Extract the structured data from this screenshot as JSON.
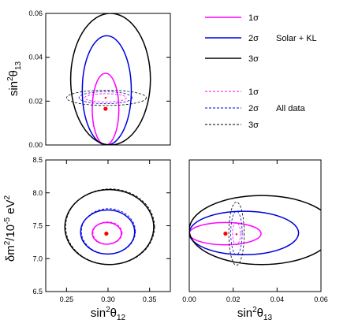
{
  "colors": {
    "one_sigma": "#ff00ff",
    "two_sigma": "#0000dd",
    "three_sigma": "#000000",
    "best_fit": "#ff0000"
  },
  "labels": {
    "top_ylabel": {
      "base": "sin",
      "sup": "2",
      "theta": "θ",
      "sub": "13"
    },
    "left_ylabel": {
      "pre": "δm",
      "sup1": "2",
      "mid": "/10",
      "sup2": "-5",
      "unit": " eV",
      "sup3": "2"
    },
    "bottom_left_xlabel": {
      "base": "sin",
      "sup": "2",
      "theta": "θ",
      "sub": "12"
    },
    "bottom_right_xlabel": {
      "base": "sin",
      "sup": "2",
      "theta": "θ",
      "sub": "13"
    }
  },
  "legend": {
    "solar_kl_group": "Solar + KL",
    "all_data_group": "All data",
    "entries": [
      "1σ",
      "2σ",
      "3σ"
    ]
  },
  "chart_data": [
    {
      "type": "scatter",
      "panel": "top-left",
      "xlim": [
        0.225,
        0.375
      ],
      "ylim": [
        0.0,
        0.06
      ],
      "x_ticks": [],
      "y_ticks": [
        {
          "v": 0.0,
          "label": "0.00"
        },
        {
          "v": 0.02,
          "label": "0.02"
        },
        {
          "v": 0.04,
          "label": "0.04"
        },
        {
          "v": 0.06,
          "label": "0.06"
        }
      ],
      "best_fit": {
        "x": 0.297,
        "y": 0.0165
      },
      "all_data_best_fit": {
        "x": 0.297,
        "y": 0.0215
      },
      "solar_kl_contours": [
        {
          "level": "1σ",
          "x_range": [
            0.281,
            0.313
          ],
          "y_range": [
            0.0,
            0.0327
          ]
        },
        {
          "level": "2σ",
          "x_range": [
            0.269,
            0.328
          ],
          "y_range": [
            0.0,
            0.0498
          ]
        },
        {
          "level": "3σ",
          "x_range": [
            0.255,
            0.351
          ],
          "y_range": [
            0.0,
            0.06
          ]
        }
      ],
      "all_data_contours": [
        {
          "level": "1σ",
          "x_range": [
            0.272,
            0.322
          ],
          "y_range": [
            0.0196,
            0.0234
          ]
        },
        {
          "level": "2σ",
          "x_range": [
            0.265,
            0.329
          ],
          "y_range": [
            0.0188,
            0.0243
          ]
        },
        {
          "level": "3σ",
          "x_range": [
            0.25,
            0.346
          ],
          "y_range": [
            0.018,
            0.025
          ]
        }
      ]
    },
    {
      "type": "scatter",
      "panel": "bottom-left",
      "xlim": [
        0.225,
        0.375
      ],
      "ylim": [
        6.5,
        8.5
      ],
      "x_ticks": [
        {
          "v": 0.25,
          "label": "0.25"
        },
        {
          "v": 0.3,
          "label": "0.30"
        },
        {
          "v": 0.35,
          "label": "0.35"
        }
      ],
      "y_ticks": [
        {
          "v": 6.5,
          "label": "6.5"
        },
        {
          "v": 7.0,
          "label": "7.0"
        },
        {
          "v": 7.5,
          "label": "7.5"
        },
        {
          "v": 8.0,
          "label": "8.0"
        },
        {
          "v": 8.5,
          "label": "8.5"
        }
      ],
      "best_fit": {
        "x": 0.298,
        "y": 7.38
      },
      "solar_kl_contours": [
        {
          "level": "1σ",
          "x_range": [
            0.281,
            0.316
          ],
          "y_range": [
            7.22,
            7.55
          ]
        },
        {
          "level": "2σ",
          "x_range": [
            0.267,
            0.332
          ],
          "y_range": [
            7.07,
            7.74
          ]
        },
        {
          "level": "3σ",
          "x_range": [
            0.248,
            0.355
          ],
          "y_range": [
            6.91,
            8.05
          ]
        }
      ],
      "all_data_contours": [
        {
          "level": "1σ",
          "x_range": [
            0.282,
            0.317
          ],
          "y_range": [
            7.22,
            7.56
          ]
        },
        {
          "level": "2σ",
          "x_range": [
            0.268,
            0.333
          ],
          "y_range": [
            7.07,
            7.76
          ]
        },
        {
          "level": "3σ",
          "x_range": [
            0.249,
            0.356
          ],
          "y_range": [
            6.91,
            8.06
          ]
        }
      ]
    },
    {
      "type": "scatter",
      "panel": "bottom-right",
      "xlim": [
        0.0,
        0.06
      ],
      "ylim": [
        6.5,
        8.5
      ],
      "x_ticks": [
        {
          "v": 0.0,
          "label": "0.00"
        },
        {
          "v": 0.02,
          "label": "0.02"
        },
        {
          "v": 0.04,
          "label": "0.04"
        },
        {
          "v": 0.06,
          "label": "0.06"
        }
      ],
      "y_ticks": [],
      "best_fit": {
        "x": 0.0165,
        "y": 7.38
      },
      "all_data_best_fit": {
        "x": 0.0215,
        "y": 7.37
      },
      "solar_kl_contours": [
        {
          "level": "1σ",
          "x_range": [
            0.0,
            0.0327
          ],
          "y_range": [
            7.21,
            7.55
          ]
        },
        {
          "level": "2σ",
          "x_range": [
            0.0,
            0.0498
          ],
          "y_range": [
            7.06,
            7.72
          ]
        },
        {
          "level": "3σ",
          "x_range": [
            0.0,
            0.066
          ],
          "y_range": [
            6.91,
            7.96
          ]
        }
      ],
      "all_data_contours": [
        {
          "level": "1σ",
          "x_range": [
            0.0197,
            0.0233
          ],
          "y_range": [
            7.21,
            7.55
          ]
        },
        {
          "level": "2σ",
          "x_range": [
            0.0189,
            0.0241
          ],
          "y_range": [
            7.06,
            7.72
          ]
        },
        {
          "level": "3σ",
          "x_range": [
            0.018,
            0.025
          ],
          "y_range": [
            6.9,
            7.86
          ]
        }
      ]
    }
  ]
}
